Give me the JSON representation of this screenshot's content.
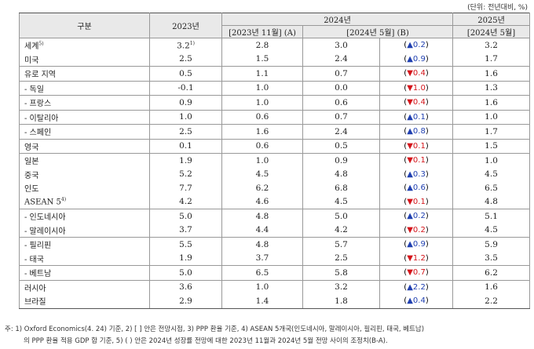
{
  "unit_label": "(단위: 전년대비, %)",
  "header": {
    "category": "구분",
    "y2023": "2023년",
    "y2024": "2024년",
    "y2025": "2025년",
    "nov2023": "[2023년 11월] (A)",
    "may2024": "[2024년 5월] (B)",
    "may2024_2025": "[2024년 5월]"
  },
  "rows": [
    {
      "name": "세계",
      "sup": "5)",
      "v2023": "3.2",
      "v2023_sup": "1)",
      "a": "2.8",
      "b": "3.0",
      "dir": "▲",
      "chg": "0.2",
      "v2025": "3.2",
      "sep": false
    },
    {
      "name": "미국",
      "sup": "",
      "v2023": "2.5",
      "v2023_sup": "",
      "a": "1.5",
      "b": "2.4",
      "dir": "▲",
      "chg": "0.9",
      "v2025": "1.7",
      "sep": false
    },
    {
      "name": "유로 지역",
      "sup": "",
      "v2023": "0.5",
      "v2023_sup": "",
      "a": "1.1",
      "b": "0.7",
      "dir": "▼",
      "chg": "0.4",
      "v2025": "1.6",
      "sep": true
    },
    {
      "name": "- 독일",
      "sup": "",
      "v2023": "-0.1",
      "v2023_sup": "",
      "a": "1.0",
      "b": "0.0",
      "dir": "▼",
      "chg": "1.0",
      "v2025": "1.3",
      "sep": true
    },
    {
      "name": "- 프랑스",
      "sup": "",
      "v2023": "0.9",
      "v2023_sup": "",
      "a": "1.0",
      "b": "0.6",
      "dir": "▼",
      "chg": "0.4",
      "v2025": "1.6",
      "sep": true
    },
    {
      "name": "- 이탈리아",
      "sup": "",
      "v2023": "1.0",
      "v2023_sup": "",
      "a": "0.6",
      "b": "0.7",
      "dir": "▲",
      "chg": "0.1",
      "v2025": "1.0",
      "sep": true
    },
    {
      "name": "- 스페인",
      "sup": "",
      "v2023": "2.5",
      "v2023_sup": "",
      "a": "1.6",
      "b": "2.4",
      "dir": "▲",
      "chg": "0.8",
      "v2025": "1.7",
      "sep": true
    },
    {
      "name": "영국",
      "sup": "",
      "v2023": "0.1",
      "v2023_sup": "",
      "a": "0.6",
      "b": "0.5",
      "dir": "▼",
      "chg": "0.1",
      "v2025": "1.5",
      "sep": true
    },
    {
      "name": "일본",
      "sup": "",
      "v2023": "1.9",
      "v2023_sup": "",
      "a": "1.0",
      "b": "0.9",
      "dir": "▼",
      "chg": "0.1",
      "v2025": "1.0",
      "sep": true
    },
    {
      "name": "중국",
      "sup": "",
      "v2023": "5.2",
      "v2023_sup": "",
      "a": "4.5",
      "b": "4.8",
      "dir": "▲",
      "chg": "0.3",
      "v2025": "4.5",
      "sep": false
    },
    {
      "name": "인도",
      "sup": "",
      "v2023": "7.7",
      "v2023_sup": "",
      "a": "6.2",
      "b": "6.8",
      "dir": "▲",
      "chg": "0.6",
      "v2025": "6.5",
      "sep": false
    },
    {
      "name": "ASEAN 5",
      "sup": "4)",
      "v2023": "4.2",
      "v2023_sup": "",
      "a": "4.6",
      "b": "4.5",
      "dir": "▼",
      "chg": "0.1",
      "v2025": "4.8",
      "sep": false
    },
    {
      "name": "- 인도네시아",
      "sup": "",
      "v2023": "5.0",
      "v2023_sup": "",
      "a": "4.8",
      "b": "5.0",
      "dir": "▲",
      "chg": "0.2",
      "v2025": "5.1",
      "sep": true
    },
    {
      "name": "- 말레이시아",
      "sup": "",
      "v2023": "3.7",
      "v2023_sup": "",
      "a": "4.4",
      "b": "4.2",
      "dir": "▼",
      "chg": "0.2",
      "v2025": "4.5",
      "sep": false
    },
    {
      "name": "- 필리핀",
      "sup": "",
      "v2023": "5.5",
      "v2023_sup": "",
      "a": "4.8",
      "b": "5.7",
      "dir": "▲",
      "chg": "0.9",
      "v2025": "5.9",
      "sep": true
    },
    {
      "name": "- 태국",
      "sup": "",
      "v2023": "1.9",
      "v2023_sup": "",
      "a": "3.7",
      "b": "2.5",
      "dir": "▼",
      "chg": "1.2",
      "v2025": "3.5",
      "sep": false
    },
    {
      "name": "- 베트남",
      "sup": "",
      "v2023": "5.0",
      "v2023_sup": "",
      "a": "6.5",
      "b": "5.8",
      "dir": "▼",
      "chg": "0.7",
      "v2025": "6.2",
      "sep": true
    },
    {
      "name": "러시아",
      "sup": "",
      "v2023": "3.6",
      "v2023_sup": "",
      "a": "1.0",
      "b": "3.2",
      "dir": "▲",
      "chg": "2.2",
      "v2025": "1.6",
      "sep": true
    },
    {
      "name": "브라질",
      "sup": "",
      "v2023": "2.9",
      "v2023_sup": "",
      "a": "1.4",
      "b": "1.8",
      "dir": "▲",
      "chg": "0.4",
      "v2025": "2.2",
      "sep": false
    }
  ],
  "notes": {
    "line1": "주: 1) Oxford Economics(4. 24) 기준, 2) [ ] 안은 전망시점, 3) PPP 환율 기준, 4) ASEAN 5개국(인도네시아, 말레이시아, 필리핀, 태국, 베트남)",
    "line2": "의 PPP 환율 적용 GDP 합 기준, 5) ( ) 안은 2024년 성장률 전망에 대한 2023년 11월과 2024년 5월 전망 사이의 조정치(B-A)."
  }
}
